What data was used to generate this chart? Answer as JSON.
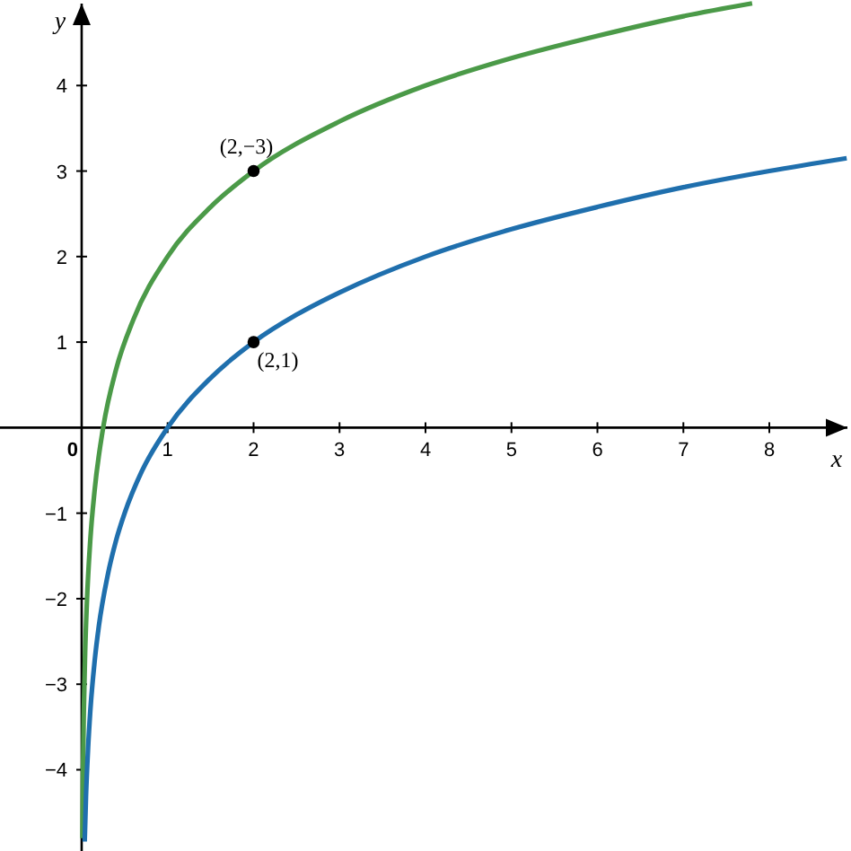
{
  "chart_data": {
    "type": "line",
    "xlabel": "x",
    "ylabel": "y",
    "xlim": [
      -0.95,
      8.95
    ],
    "ylim": [
      -4.95,
      5
    ],
    "xticks": [
      0,
      1,
      2,
      3,
      4,
      5,
      6,
      7,
      8
    ],
    "yticks": [
      {
        "value": -4,
        "label": "−4"
      },
      {
        "value": -3,
        "label": "−3"
      },
      {
        "value": -2,
        "label": "−2"
      },
      {
        "value": -1,
        "label": "−1"
      },
      1,
      2,
      3,
      4
    ],
    "grid": false,
    "marker": "none",
    "line_style": "solid",
    "series": [
      {
        "color": "#4b9a48",
        "x": [
          0.009,
          0.015,
          0.025,
          0.04,
          0.06,
          0.1,
          0.15,
          0.25,
          0.4,
          0.6,
          1,
          1.5,
          2,
          3,
          4,
          5,
          6,
          7,
          7.8
        ],
        "values": [
          -4.8,
          -4.06,
          -3.32,
          -2.64,
          -2.06,
          -1.32,
          -0.74,
          0,
          0.68,
          1.26,
          2,
          2.58,
          3,
          3.58,
          4,
          4.32,
          4.58,
          4.81,
          4.96
        ]
      },
      {
        "color": "#1f6fad",
        "x": [
          0.035,
          0.05,
          0.075,
          0.1,
          0.15,
          0.2,
          0.3,
          0.4,
          0.5,
          0.7,
          1,
          1.5,
          2,
          2.5,
          3,
          4,
          5,
          6,
          7,
          8,
          8.9
        ],
        "values": [
          -4.84,
          -4.32,
          -3.74,
          -3.32,
          -2.74,
          -2.32,
          -1.74,
          -1.32,
          -1,
          -0.51,
          0,
          0.58,
          1,
          1.32,
          1.58,
          2,
          2.32,
          2.58,
          2.81,
          3,
          3.15
        ]
      },
      {
        "type": "scatter",
        "color": "#000000",
        "marker": "circle",
        "x": [
          2,
          2
        ],
        "values": [
          3,
          1
        ]
      }
    ],
    "annotations": [
      {
        "text": "(2,−3)",
        "x": 2,
        "y": 3
      },
      {
        "text": "(2,1)",
        "x": 2,
        "y": 1
      }
    ]
  }
}
